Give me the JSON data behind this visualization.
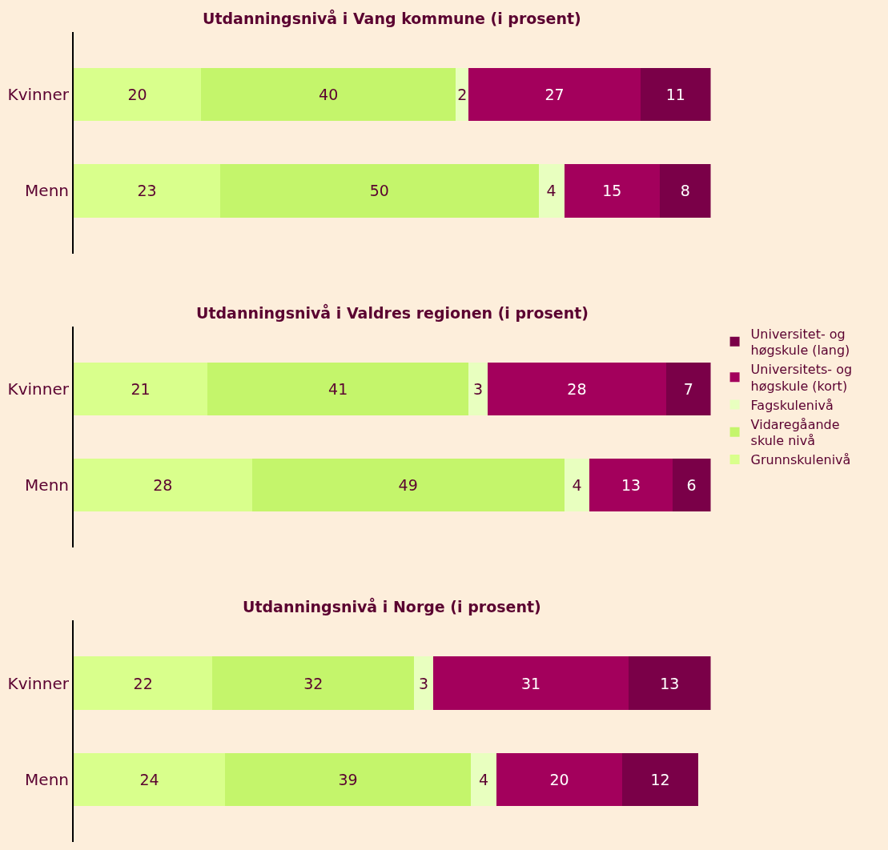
{
  "chart_data": [
    {
      "type": "bar",
      "orientation": "horizontal",
      "stacked": true,
      "title": "Utdanningsnivå i Vang kommune (i prosent)",
      "categories": [
        "Kvinner",
        "Menn"
      ],
      "tick_labels": "y",
      "data_labels": true,
      "legend": false,
      "grid": false,
      "series": [
        {
          "color": "#d9ff8c",
          "values": [
            20,
            23
          ]
        },
        {
          "color": "#c4f56b",
          "values": [
            40,
            50
          ]
        },
        {
          "color": "#e8ffbf",
          "values": [
            2,
            4
          ]
        },
        {
          "color": "#a3005c",
          "values": [
            27,
            15
          ]
        },
        {
          "color": "#7a0048",
          "values": [
            11,
            8
          ]
        }
      ]
    },
    {
      "type": "bar",
      "orientation": "horizontal",
      "stacked": true,
      "title": "Utdanningsnivå i Valdres regionen (i prosent)",
      "categories": [
        "Kvinner",
        "Menn"
      ],
      "tick_labels": "y",
      "data_labels": true,
      "legend": "right",
      "grid": false,
      "series": [
        {
          "name": "Grunnskulenivå",
          "color": "#d9ff8c",
          "values": [
            21,
            28
          ]
        },
        {
          "name": "Vidaregåande skule nivå",
          "color": "#c4f56b",
          "values": [
            41,
            49
          ]
        },
        {
          "name": "Fagskulenivå",
          "color": "#e8ffbf",
          "values": [
            3,
            4
          ]
        },
        {
          "name": "Universitets- og høgskule (kort)",
          "color": "#a3005c",
          "values": [
            28,
            13
          ]
        },
        {
          "name": "Universitet- og høgskule (lang)",
          "color": "#7a0048",
          "values": [
            7,
            6
          ]
        }
      ]
    },
    {
      "type": "bar",
      "orientation": "horizontal",
      "stacked": true,
      "title": "Utdanningsnivå i Norge (i prosent)",
      "categories": [
        "Kvinner",
        "Menn"
      ],
      "tick_labels": "y",
      "data_labels": true,
      "legend": false,
      "grid": false,
      "series": [
        {
          "color": "#d9ff8c",
          "values": [
            22,
            24
          ]
        },
        {
          "color": "#c4f56b",
          "values": [
            32,
            39
          ]
        },
        {
          "color": "#e8ffbf",
          "values": [
            3,
            4
          ]
        },
        {
          "color": "#a3005c",
          "values": [
            31,
            20
          ]
        },
        {
          "color": "#7a0048",
          "values": [
            13,
            12
          ]
        }
      ]
    }
  ]
}
